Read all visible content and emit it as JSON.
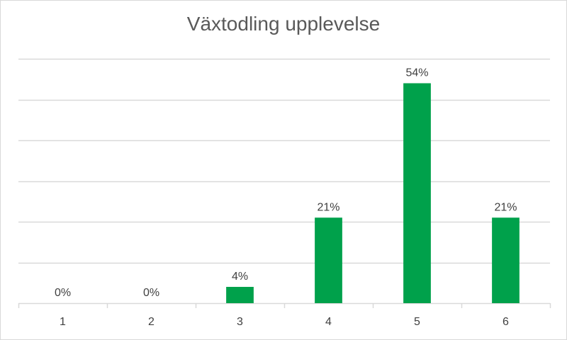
{
  "chart_data": {
    "type": "bar",
    "title": "Växtodling upplevelse",
    "categories": [
      "1",
      "2",
      "3",
      "4",
      "5",
      "6"
    ],
    "values": [
      0,
      0,
      4,
      21,
      54,
      21
    ],
    "data_labels": [
      "0%",
      "0%",
      "4%",
      "21%",
      "54%",
      "21%"
    ],
    "value_unit": "%",
    "ylim": [
      0,
      60
    ],
    "y_gridlines": [
      0,
      10,
      20,
      30,
      40,
      50,
      60
    ],
    "y_tick_labels_shown": false,
    "grid": true,
    "legend": "none",
    "bar_color": "#00a14b",
    "gridline_color": "#d9d9d9",
    "text_color": "#404040"
  }
}
